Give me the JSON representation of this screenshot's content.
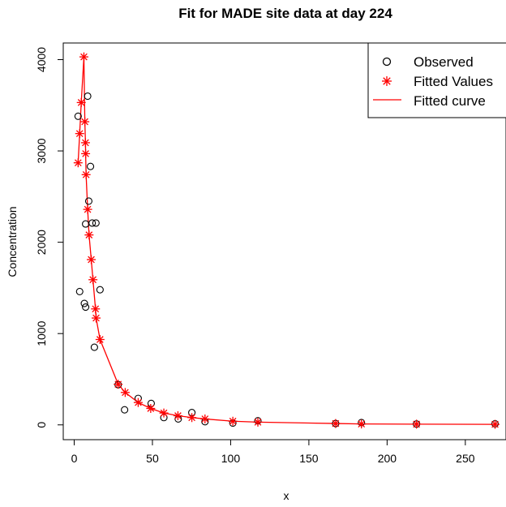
{
  "chart_data": {
    "type": "scatter",
    "title": "Fit for MADE site data at day 224",
    "xlabel": "x",
    "ylabel": "Concentration",
    "xlim": [
      -7,
      276
    ],
    "ylim": [
      -162,
      4182
    ],
    "x_ticks": [
      0,
      50,
      100,
      150,
      200,
      250
    ],
    "y_ticks": [
      0,
      1000,
      2000,
      3000,
      4000
    ],
    "legend_position": "top-right",
    "legend": [
      {
        "label": "Observed",
        "marker": "open-circle",
        "color": "#000000"
      },
      {
        "label": "Fitted Values",
        "marker": "asterisk",
        "color": "#ff0000"
      },
      {
        "label": "Fitted curve",
        "marker": "line",
        "color": "#ff0000"
      }
    ],
    "series": [
      {
        "name": "Observed",
        "kind": "points",
        "color": "#000000",
        "points": [
          [
            2.5,
            3380
          ],
          [
            3.5,
            1460
          ],
          [
            6.5,
            1330
          ],
          [
            7.3,
            1290
          ],
          [
            7.3,
            2200
          ],
          [
            8.6,
            3600
          ],
          [
            9.3,
            2450
          ],
          [
            10.4,
            2830
          ],
          [
            11.5,
            2210
          ],
          [
            13.9,
            2210
          ],
          [
            12.9,
            850
          ],
          [
            16.5,
            1480
          ],
          [
            28.1,
            440
          ],
          [
            32.2,
            165
          ],
          [
            40.9,
            290
          ],
          [
            49.2,
            235
          ],
          [
            57.3,
            80
          ],
          [
            66.5,
            65
          ],
          [
            75.2,
            135
          ],
          [
            83.6,
            35
          ],
          [
            101.4,
            20
          ],
          [
            117.4,
            45
          ],
          [
            167.1,
            15
          ],
          [
            183.6,
            25
          ],
          [
            218.8,
            10
          ],
          [
            269.0,
            12
          ]
        ]
      },
      {
        "name": "Fitted Values",
        "kind": "points",
        "color": "#ff0000",
        "points": [
          [
            2.5,
            2870
          ],
          [
            3.5,
            3190
          ],
          [
            4.5,
            3530
          ],
          [
            6.2,
            4030
          ],
          [
            6.8,
            3320
          ],
          [
            7.2,
            3090
          ],
          [
            7.3,
            2970
          ],
          [
            7.6,
            2740
          ],
          [
            8.6,
            2360
          ],
          [
            9.5,
            2080
          ],
          [
            10.9,
            1810
          ],
          [
            12.0,
            1590
          ],
          [
            13.6,
            1270
          ],
          [
            14.0,
            1170
          ],
          [
            16.5,
            935
          ],
          [
            28.1,
            445
          ],
          [
            32.6,
            355
          ],
          [
            40.9,
            245
          ],
          [
            48.9,
            180
          ],
          [
            57.3,
            130
          ],
          [
            66.3,
            100
          ],
          [
            75.2,
            80
          ],
          [
            83.6,
            65
          ],
          [
            101.4,
            40
          ],
          [
            117.4,
            30
          ],
          [
            167.1,
            15
          ],
          [
            183.6,
            10
          ],
          [
            218.8,
            8
          ],
          [
            269.0,
            6
          ]
        ]
      }
    ],
    "curve": {
      "name": "Fitted curve",
      "color": "#ff0000",
      "points": [
        [
          2.5,
          2870
        ],
        [
          3.5,
          3190
        ],
        [
          4.5,
          3530
        ],
        [
          6.2,
          4030
        ],
        [
          6.8,
          3320
        ],
        [
          7.2,
          3090
        ],
        [
          7.3,
          2970
        ],
        [
          7.6,
          2740
        ],
        [
          8.6,
          2360
        ],
        [
          9.5,
          2080
        ],
        [
          10.9,
          1810
        ],
        [
          12.0,
          1590
        ],
        [
          13.6,
          1270
        ],
        [
          14.0,
          1170
        ],
        [
          16.5,
          935
        ],
        [
          28.1,
          445
        ],
        [
          32.6,
          355
        ],
        [
          40.9,
          245
        ],
        [
          48.9,
          180
        ],
        [
          57.3,
          130
        ],
        [
          66.3,
          100
        ],
        [
          75.2,
          80
        ],
        [
          83.6,
          65
        ],
        [
          101.4,
          40
        ],
        [
          117.4,
          30
        ],
        [
          167.1,
          15
        ],
        [
          183.6,
          10
        ],
        [
          218.8,
          8
        ],
        [
          269.0,
          6
        ]
      ]
    }
  }
}
